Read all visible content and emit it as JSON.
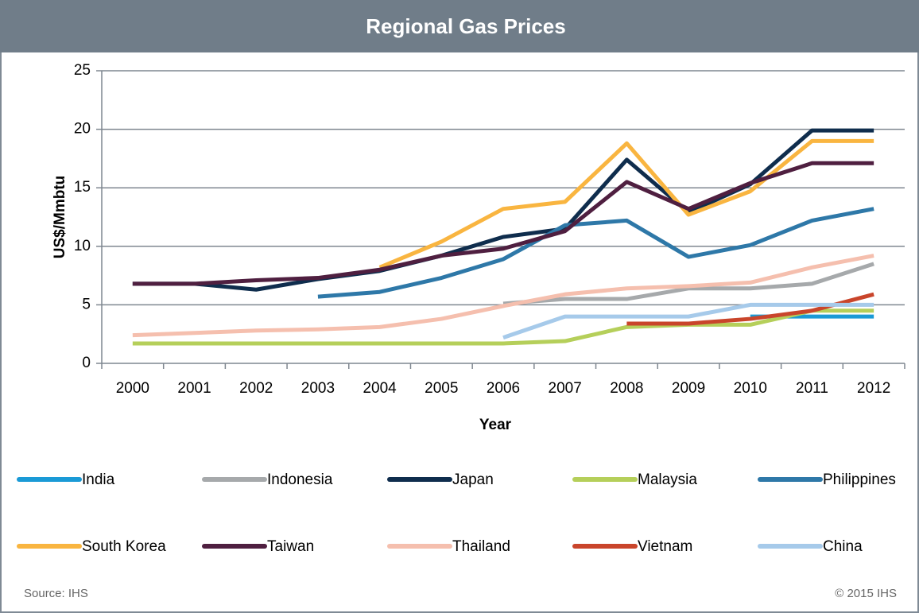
{
  "chart_data": {
    "type": "line",
    "title": "Regional Gas Prices",
    "y_label": "US$/Mmbtu",
    "x_label": "Year",
    "categories": [
      "2000",
      "2001",
      "2002",
      "2003",
      "2004",
      "2005",
      "2006",
      "2007",
      "2008",
      "2009",
      "2010",
      "2011",
      "2012"
    ],
    "ylim": [
      0,
      25
    ],
    "yticks": [
      0,
      5,
      10,
      15,
      20,
      25
    ],
    "grid": true,
    "legend": "bottom",
    "series": [
      {
        "name": "India",
        "color": "#1a9ad6",
        "values": [
          null,
          null,
          null,
          null,
          null,
          null,
          null,
          null,
          null,
          null,
          4.0,
          4.0,
          4.0
        ]
      },
      {
        "name": "Indonesia",
        "color": "#a6a9ab",
        "values": [
          null,
          null,
          null,
          null,
          null,
          null,
          5.1,
          5.5,
          5.5,
          6.4,
          6.4,
          6.8,
          8.5
        ]
      },
      {
        "name": "Japan",
        "color": "#0f2d4d",
        "values": [
          6.8,
          6.8,
          6.3,
          7.2,
          7.9,
          9.2,
          10.8,
          11.5,
          17.4,
          12.9,
          15.3,
          19.9,
          19.9
        ]
      },
      {
        "name": "Malaysia",
        "color": "#b5cf5a",
        "values": [
          1.7,
          1.7,
          1.7,
          1.7,
          1.7,
          1.7,
          1.7,
          1.9,
          3.1,
          3.3,
          3.3,
          4.5,
          4.5
        ]
      },
      {
        "name": "Philippines",
        "color": "#2e78a8",
        "values": [
          null,
          null,
          null,
          5.7,
          6.1,
          7.3,
          8.9,
          11.8,
          12.2,
          9.1,
          10.1,
          12.2,
          13.2
        ]
      },
      {
        "name": "South Korea",
        "color": "#f9b540",
        "values": [
          null,
          null,
          null,
          null,
          8.2,
          10.4,
          13.2,
          13.8,
          18.8,
          12.7,
          14.7,
          19.0,
          19.0
        ]
      },
      {
        "name": "Taiwan",
        "color": "#4f1f40",
        "values": [
          6.8,
          6.8,
          7.1,
          7.3,
          8.0,
          9.2,
          9.8,
          11.3,
          15.5,
          13.2,
          15.4,
          17.1,
          17.1
        ]
      },
      {
        "name": "Thailand",
        "color": "#f5bfae",
        "values": [
          2.4,
          2.6,
          2.8,
          2.9,
          3.1,
          3.8,
          4.9,
          5.9,
          6.4,
          6.6,
          6.9,
          8.2,
          9.2
        ]
      },
      {
        "name": "Vietnam",
        "color": "#c9452b",
        "values": [
          null,
          null,
          null,
          null,
          null,
          null,
          null,
          null,
          3.4,
          3.4,
          3.8,
          4.5,
          5.9
        ]
      },
      {
        "name": "China",
        "color": "#a6caea",
        "values": [
          null,
          null,
          null,
          null,
          null,
          null,
          2.2,
          4.0,
          4.0,
          4.0,
          5.0,
          5.0,
          5.0
        ]
      }
    ],
    "source": "Source: IHS",
    "copyright": "© 2015 IHS"
  }
}
